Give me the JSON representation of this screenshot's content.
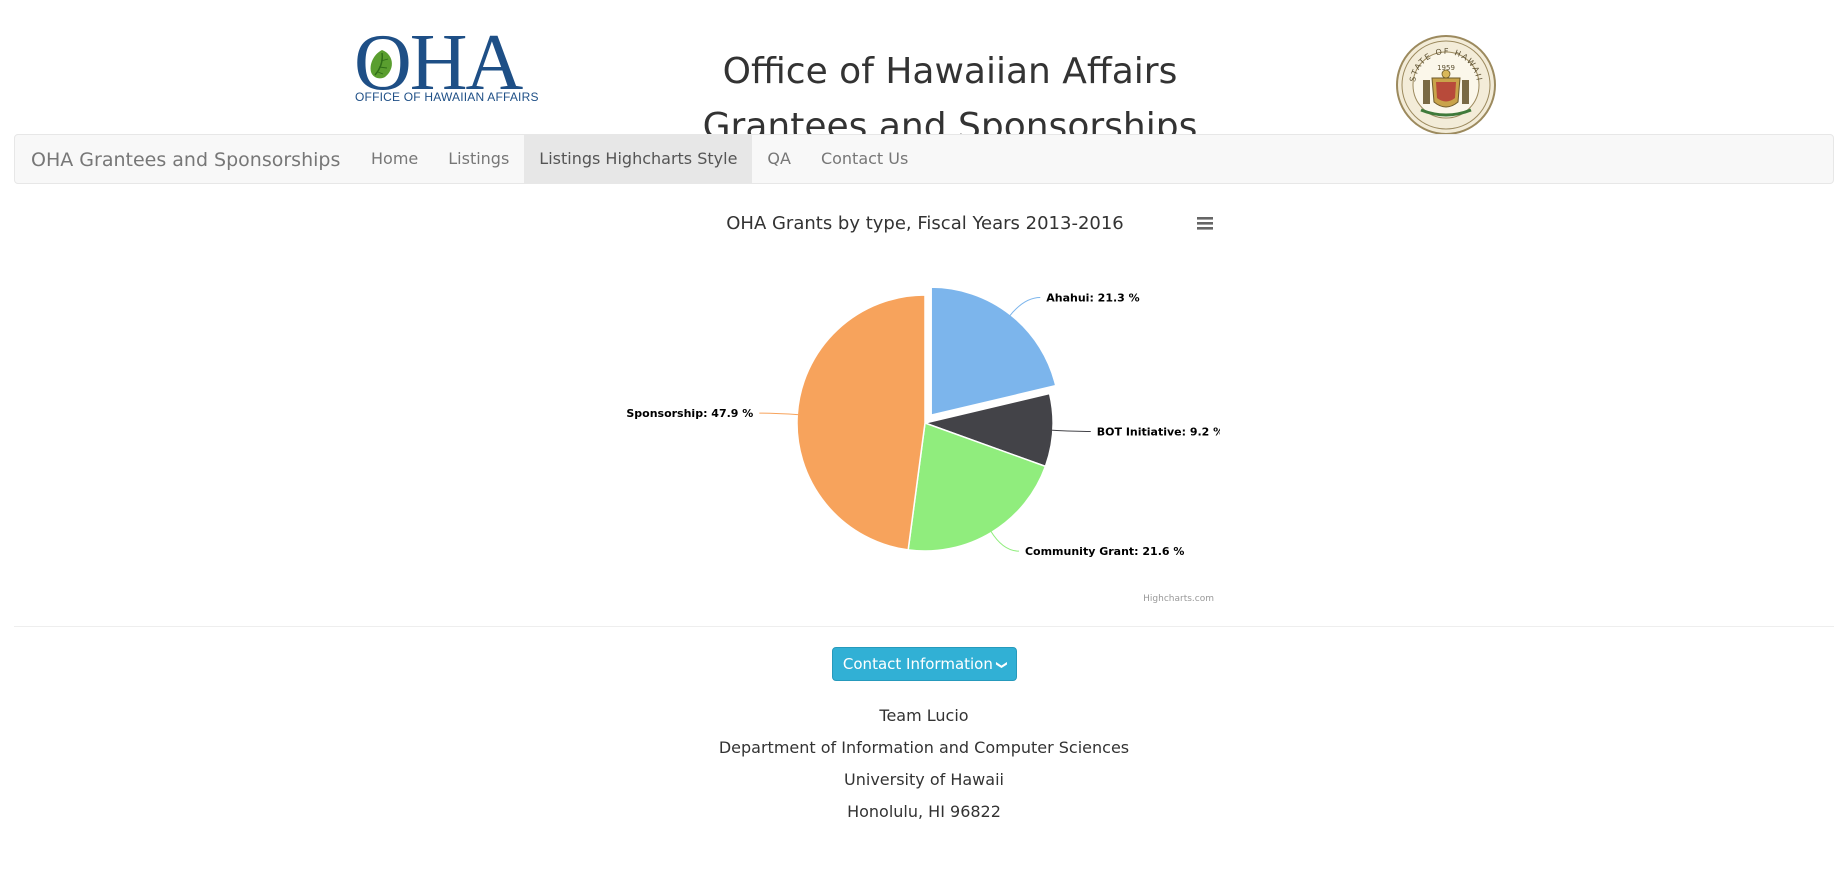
{
  "header": {
    "logo": {
      "word": "OHA",
      "subtitle": "OFFICE OF HAWAIIAN AFFAIRS"
    },
    "title_line1": "Office of Hawaiian Affairs",
    "title_line2": "Grantees and Sponsorships",
    "seal": {
      "ring_text": "STATE OF HAWAII",
      "year": "1959"
    }
  },
  "navbar": {
    "brand": "OHA Grantees and Sponsorships",
    "items": [
      {
        "label": "Home",
        "active": false
      },
      {
        "label": "Listings",
        "active": false
      },
      {
        "label": "Listings Highcharts Style",
        "active": true
      },
      {
        "label": "QA",
        "active": false
      },
      {
        "label": "Contact Us",
        "active": false
      }
    ]
  },
  "chart_data": {
    "type": "pie",
    "title": "OHA Grants by type, Fiscal Years 2013-2016",
    "credits": "Highcharts.com",
    "slices": [
      {
        "name": "Ahahui",
        "value": 21.3,
        "color": "#7cb5ec",
        "sliced": true
      },
      {
        "name": "BOT Initiative",
        "value": 9.2,
        "color": "#434348",
        "sliced": false
      },
      {
        "name": "Community Grant",
        "value": 21.6,
        "color": "#90ed7d",
        "sliced": false
      },
      {
        "name": "Sponsorship",
        "value": 47.9,
        "color": "#f7a35c",
        "sliced": false
      }
    ],
    "label_suffix": " %"
  },
  "contact": {
    "button_label": "Contact Information",
    "lines": [
      "Team Lucio",
      "Department of Information and Computer Sciences",
      "University of Hawaii",
      "Honolulu, HI 96822"
    ]
  }
}
